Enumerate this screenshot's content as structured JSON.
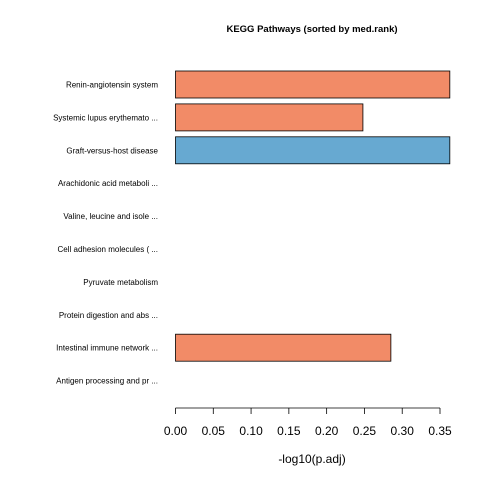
{
  "chart_data": {
    "type": "bar",
    "orientation": "horizontal",
    "title": "KEGG Pathways (sorted by med.rank)",
    "xlabel": "-log10(p.adj)",
    "ylabel": "",
    "xlim": [
      0,
      0.37
    ],
    "xticks": [
      0.0,
      0.05,
      0.1,
      0.15,
      0.2,
      0.25,
      0.3,
      0.35
    ],
    "xtick_labels": [
      "0.00",
      "0.05",
      "0.10",
      "0.15",
      "0.20",
      "0.25",
      "0.30",
      "0.35"
    ],
    "grid": false,
    "categories": [
      "Renin-angiotensin system",
      "Systemic lupus erythemato ...",
      "Graft-versus-host disease",
      "Arachidonic acid metaboli ...",
      "Valine, leucine and isole ...",
      "Cell adhesion molecules ( ...",
      "Pyruvate metabolism",
      "Protein digestion and abs ...",
      "Intestinal immune network ...",
      "Antigen processing and pr ..."
    ],
    "values": [
      0.363,
      0.248,
      0.363,
      0,
      0,
      0,
      0,
      0,
      0.285,
      0
    ],
    "bar_colors": [
      "#f28b67",
      "#f28b67",
      "#67a9d1",
      "#f28b67",
      "#f28b67",
      "#f28b67",
      "#f28b67",
      "#f28b67",
      "#f28b67",
      "#f28b67"
    ]
  }
}
